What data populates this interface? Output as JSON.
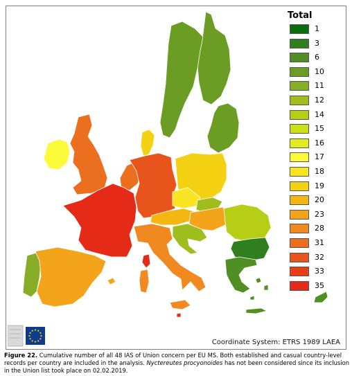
{
  "legend": {
    "title": "Total",
    "items": [
      {
        "label": "1",
        "color": "#0a6b0a"
      },
      {
        "label": "3",
        "color": "#2f7f1e"
      },
      {
        "label": "6",
        "color": "#4f8f23"
      },
      {
        "label": "10",
        "color": "#6b9c23"
      },
      {
        "label": "11",
        "color": "#86ad25"
      },
      {
        "label": "12",
        "color": "#9fbe1e"
      },
      {
        "label": "14",
        "color": "#b6cf16"
      },
      {
        "label": "15",
        "color": "#cddf18"
      },
      {
        "label": "16",
        "color": "#e3ec1c"
      },
      {
        "label": "17",
        "color": "#fbfb3a"
      },
      {
        "label": "18",
        "color": "#f9e523"
      },
      {
        "label": "19",
        "color": "#f5d114"
      },
      {
        "label": "20",
        "color": "#f4b712"
      },
      {
        "label": "23",
        "color": "#f3a41a"
      },
      {
        "label": "28",
        "color": "#f08a20"
      },
      {
        "label": "31",
        "color": "#ec6f20"
      },
      {
        "label": "32",
        "color": "#e8551c"
      },
      {
        "label": "33",
        "color": "#e63e19"
      },
      {
        "label": "35",
        "color": "#e52b17"
      }
    ]
  },
  "coordinate_system": "Coordinate System: ETRS 1989 LAEA",
  "logo": {
    "name": "european-commission-logo",
    "colors": {
      "flag": "#0e3c8c",
      "stars": "#ffcc00"
    }
  },
  "caption": {
    "label": "Figure 22.",
    "text_part1": " Cumulative number of all 48 IAS of Union concern per EU MS. Both established and casual country-level records per country are included in the analysis. ",
    "species": "Nyctereutes procyonoides",
    "text_part2": " has not been considered since its inclusion in the Union list took place on 02.02.2019."
  },
  "regions": [
    {
      "name": "finland",
      "color": "#6b9c23"
    },
    {
      "name": "sweden",
      "color": "#6b9c23"
    },
    {
      "name": "estonia-latvia-lithuania",
      "color": "#6b9c23"
    },
    {
      "name": "ireland",
      "color": "#fbfb3a"
    },
    {
      "name": "united-kingdom",
      "color": "#ec6f20"
    },
    {
      "name": "denmark",
      "color": "#f5d114"
    },
    {
      "name": "netherlands-belgium",
      "color": "#ec6f20"
    },
    {
      "name": "france",
      "color": "#e52b17"
    },
    {
      "name": "germany",
      "color": "#e8551c"
    },
    {
      "name": "poland",
      "color": "#f5d114"
    },
    {
      "name": "czechia",
      "color": "#f9e523"
    },
    {
      "name": "slovakia",
      "color": "#9fbe1e"
    },
    {
      "name": "austria",
      "color": "#f4b712"
    },
    {
      "name": "hungary",
      "color": "#f3a41a"
    },
    {
      "name": "romania",
      "color": "#b6cf16"
    },
    {
      "name": "slovenia-croatia",
      "color": "#9fbe1e"
    },
    {
      "name": "bulgaria",
      "color": "#2f7f1e"
    },
    {
      "name": "italy",
      "color": "#f08a20"
    },
    {
      "name": "portugal",
      "color": "#86ad25"
    },
    {
      "name": "spain",
      "color": "#f3a41a"
    },
    {
      "name": "greece",
      "color": "#4f8f23"
    },
    {
      "name": "cyprus",
      "color": "#4f8f23"
    },
    {
      "name": "malta",
      "color": "#e52b17"
    }
  ]
}
